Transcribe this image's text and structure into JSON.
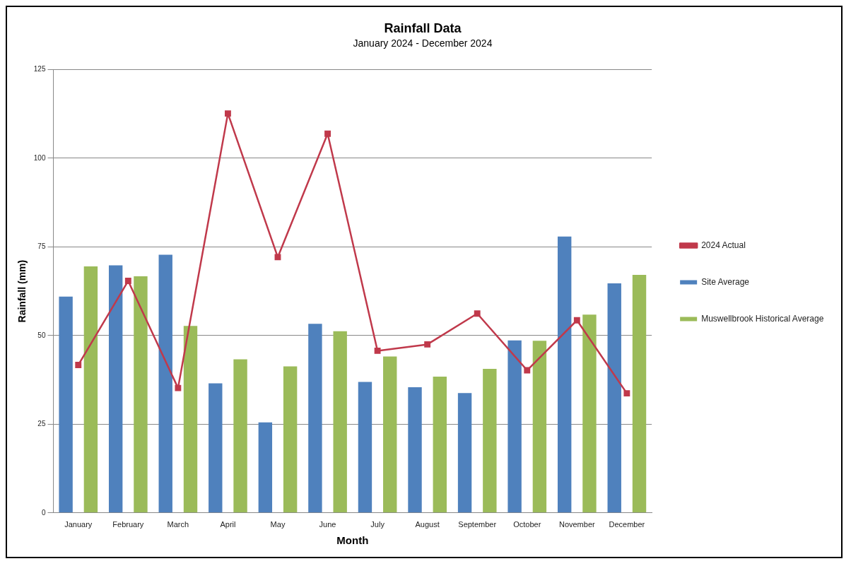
{
  "chart_data": {
    "type": "bar",
    "title": "Rainfall Data",
    "subtitle": "January 2024 - December 2024",
    "xlabel": "Month",
    "ylabel": "Rainfall (mm)",
    "categories": [
      "January",
      "February",
      "March",
      "April",
      "May",
      "June",
      "July",
      "August",
      "September",
      "October",
      "November",
      "December"
    ],
    "series": [
      {
        "name": "Site Average",
        "color": "#4f81bd",
        "values": [
          61,
          69.8,
          72.8,
          36.5,
          25.5,
          53.3,
          36.9,
          35.4,
          33.8,
          48.6,
          77.9,
          64.7
        ]
      },
      {
        "name": "Muswellbrook Historical Average",
        "color": "#9bbb59",
        "values": [
          69.5,
          66.7,
          52.7,
          43.3,
          41.3,
          51.2,
          44.1,
          38.4,
          40.6,
          48.5,
          55.9,
          67.1
        ]
      },
      {
        "name": "2024 Actual",
        "color": "#c0394b",
        "type": "line",
        "marker": "square",
        "values": [
          41.7,
          65.4,
          35.2,
          112.6,
          72.1,
          106.9,
          45.7,
          47.5,
          56.2,
          40.2,
          54.3,
          33.7
        ]
      }
    ],
    "ylim": [
      0,
      125
    ],
    "yticks": [
      0,
      25,
      50,
      75,
      100,
      125
    ],
    "grid": "y",
    "legend": "right"
  }
}
